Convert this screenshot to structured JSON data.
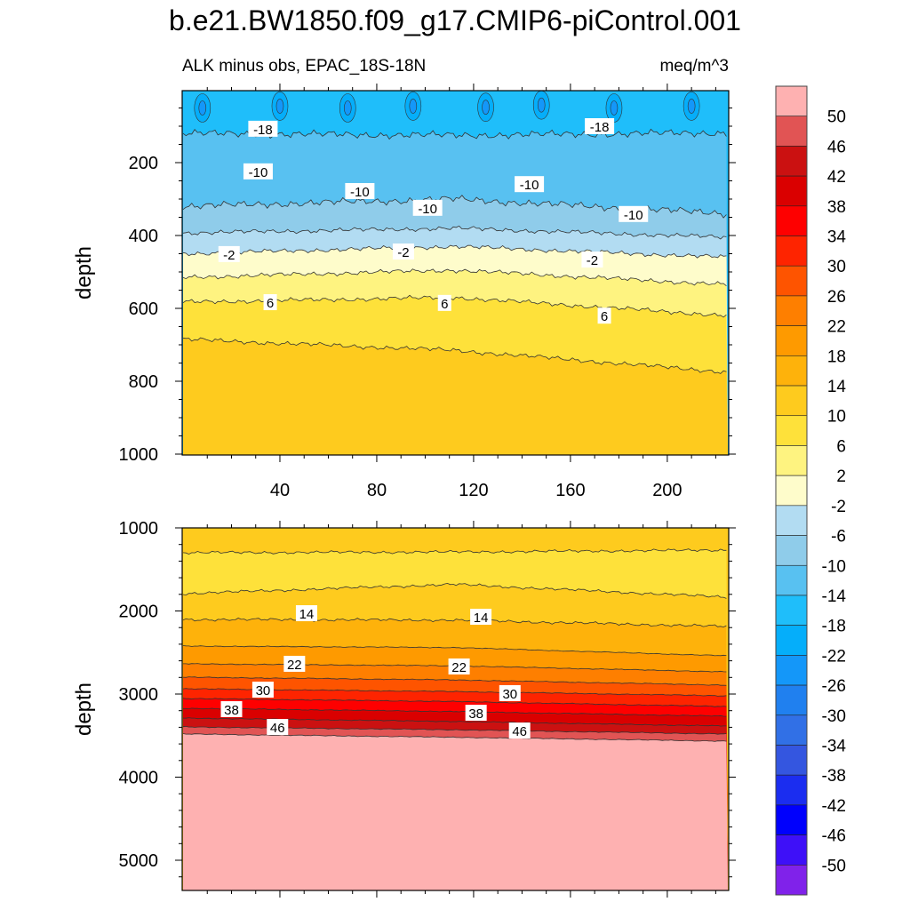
{
  "chart_data": {
    "type": "heatmap",
    "subtype": "filled-contour",
    "title": "b.e21.BW1850.f09_g17.CMIP6-piControl.001",
    "subtitle_left": "ALK minus obs, EPAC_18S-18N",
    "subtitle_right": "meq/m^3",
    "ylabel": "depth",
    "x_ticks": [
      "40",
      "80",
      "120",
      "160",
      "200"
    ],
    "x_tick_values": [
      40,
      80,
      120,
      160,
      200
    ],
    "xlim": [
      0,
      225
    ],
    "colorbar": {
      "labels": [
        "50",
        "46",
        "42",
        "38",
        "34",
        "30",
        "26",
        "22",
        "18",
        "14",
        "10",
        "6",
        "2",
        "-2",
        "-6",
        "-10",
        "-14",
        "-18",
        "-22",
        "-26",
        "-30",
        "-34",
        "-38",
        "-42",
        "-46",
        "-50"
      ],
      "colors": [
        "#feb1b1",
        "#e15454",
        "#cb1111",
        "#da0000",
        "#fe0000",
        "#fe2400",
        "#fe5400",
        "#fe7f00",
        "#fe9a00",
        "#feb20b",
        "#fecb1e",
        "#fee13a",
        "#fef380",
        "#fefccb",
        "#b2dcf2",
        "#8fccea",
        "#58c1f1",
        "#1fbefa",
        "#05aefa",
        "#1497f9",
        "#2080ef",
        "#3170e6",
        "#3456e0",
        "#1b2df0",
        "#0000fd",
        "#3e10f8",
        "#8022ea"
      ]
    },
    "panels": [
      {
        "name": "upper",
        "ylim": [
          0,
          1000
        ],
        "y_ticks": [
          "200",
          "400",
          "600",
          "800",
          "1000"
        ],
        "y_tick_values": [
          200,
          400,
          600,
          800,
          1000
        ],
        "sample_x": [
          0,
          112,
          225
        ],
        "top_level": -18,
        "boundaries": [
          {
            "level": -18,
            "below": -14,
            "depth": [
              120,
              125,
              118
            ]
          },
          {
            "level": -10,
            "below": -10,
            "depth": [
              320,
              300,
              340
            ]
          },
          {
            "level": -6,
            "below": -6,
            "depth": [
              393,
              380,
              405
            ]
          },
          {
            "level": -2,
            "below": -2,
            "depth": [
              450,
              430,
              460
            ]
          },
          {
            "level": 2,
            "below": 2,
            "depth": [
              515,
              495,
              535
            ]
          },
          {
            "level": 6,
            "below": 6,
            "depth": [
              583,
              570,
              620
            ]
          },
          {
            "level": 10,
            "below": 10,
            "depth": [
              685,
              715,
              775
            ]
          }
        ],
        "surface_minima": [
          {
            "x": 8,
            "depth": 50
          },
          {
            "x": 40,
            "depth": 45
          },
          {
            "x": 68,
            "depth": 50
          },
          {
            "x": 95,
            "depth": 45
          },
          {
            "x": 125,
            "depth": 48
          },
          {
            "x": 148,
            "depth": 42
          },
          {
            "x": 178,
            "depth": 50
          },
          {
            "x": 210,
            "depth": 45
          }
        ],
        "labels": [
          {
            "text": "-18",
            "x": 33,
            "depth": 107
          },
          {
            "text": "-18",
            "x": 172,
            "depth": 100
          },
          {
            "text": "-10",
            "x": 31,
            "depth": 224
          },
          {
            "text": "-10",
            "x": 73,
            "depth": 278
          },
          {
            "text": "-10",
            "x": 101,
            "depth": 324
          },
          {
            "text": "-10",
            "x": 143,
            "depth": 259
          },
          {
            "text": "-10",
            "x": 186,
            "depth": 341
          },
          {
            "text": "-2",
            "x": 19,
            "depth": 451
          },
          {
            "text": "-2",
            "x": 91,
            "depth": 444
          },
          {
            "text": "-2",
            "x": 169,
            "depth": 466
          },
          {
            "text": "6",
            "x": 36,
            "depth": 583
          },
          {
            "text": "6",
            "x": 108,
            "depth": 585
          },
          {
            "text": "6",
            "x": 174,
            "depth": 620
          }
        ]
      },
      {
        "name": "lower",
        "ylim": [
          1000,
          5360
        ],
        "y_ticks": [
          "1000",
          "2000",
          "3000",
          "4000",
          "5000"
        ],
        "y_tick_values": [
          1000,
          2000,
          3000,
          4000,
          5000
        ],
        "sample_x": [
          0,
          112,
          225
        ],
        "top_level": 10,
        "boundaries": [
          {
            "level": 10,
            "below": 6,
            "depth": [
              1299,
              1290,
              1267
            ]
          },
          {
            "level": 10,
            "below": 10,
            "depth": [
              1791,
              1680,
              1834
            ]
          },
          {
            "level": 14,
            "below": 14,
            "depth": [
              2102,
              2110,
              2187
            ]
          },
          {
            "level": 18,
            "below": 18,
            "depth": [
              2422,
              2440,
              2540
            ]
          },
          {
            "level": 22,
            "below": 22,
            "depth": [
              2636,
              2660,
              2733
            ]
          },
          {
            "level": 26,
            "below": 26,
            "depth": [
              2797,
              2830,
              2893
            ]
          },
          {
            "level": 30,
            "below": 30,
            "depth": [
              2936,
              2970,
              3021
            ]
          },
          {
            "level": 34,
            "below": 34,
            "depth": [
              3053,
              3090,
              3150
            ]
          },
          {
            "level": 38,
            "below": 38,
            "depth": [
              3171,
              3210,
              3267
            ]
          },
          {
            "level": 42,
            "below": 42,
            "depth": [
              3289,
              3330,
              3385
            ]
          },
          {
            "level": 46,
            "below": 46,
            "depth": [
              3396,
              3430,
              3481
            ]
          },
          {
            "level": 50,
            "below": 50,
            "depth": [
              3481,
              3520,
              3567
            ]
          }
        ],
        "labels": [
          {
            "text": "14",
            "x": 51,
            "depth": 2027
          },
          {
            "text": "14",
            "x": 123,
            "depth": 2070
          },
          {
            "text": "22",
            "x": 46,
            "depth": 2636
          },
          {
            "text": "22",
            "x": 114,
            "depth": 2668
          },
          {
            "text": "30",
            "x": 33,
            "depth": 2947
          },
          {
            "text": "30",
            "x": 135,
            "depth": 2989
          },
          {
            "text": "38",
            "x": 20,
            "depth": 3182
          },
          {
            "text": "38",
            "x": 121,
            "depth": 3225
          },
          {
            "text": "46",
            "x": 39,
            "depth": 3396
          },
          {
            "text": "46",
            "x": 139,
            "depth": 3439
          }
        ]
      }
    ]
  }
}
